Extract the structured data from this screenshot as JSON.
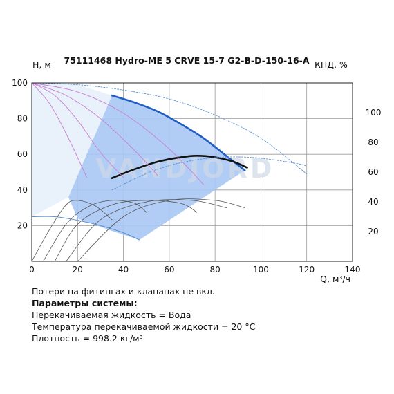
{
  "chart_data": {
    "type": "line",
    "title": "75111468 Hydro-ME 5 CRVE 15-7 G2-B-D-150-16-A",
    "ylabel": "H, м",
    "y2label": "КПД, %",
    "xlabel": "Q, м³/ч",
    "xlim": [
      0,
      140
    ],
    "ylim": [
      0,
      100
    ],
    "y2lim": [
      0,
      120
    ],
    "x_ticks": [
      0,
      20,
      40,
      60,
      80,
      100,
      120,
      140
    ],
    "y_ticks": [
      20,
      40,
      60,
      80,
      100
    ],
    "y2_ticks": [
      20,
      40,
      60,
      80,
      100
    ],
    "grid": true,
    "watermark": "VANDJORD",
    "colors": {
      "head_main": "#1f5fc4",
      "efficiency_main": "#111111",
      "region_fill": "#a9c8f4",
      "light_region": "#e9f1fb",
      "pink": "#c77fcf",
      "thin_blue": "#5a90d0",
      "thin_gray": "#555555"
    },
    "series": [
      {
        "role": "head-main",
        "axis": "left",
        "color": "#1f5fc4",
        "x": [
          35,
          45,
          55,
          65,
          75,
          85,
          93
        ],
        "y": [
          93,
          89,
          84,
          77,
          69,
          59,
          51
        ]
      },
      {
        "role": "efficiency-main",
        "axis": "right",
        "color": "#111111",
        "x": [
          35,
          45,
          55,
          65,
          72,
          80,
          88,
          94
        ],
        "y": [
          56,
          62,
          67,
          70,
          71,
          70,
          67,
          63
        ]
      },
      {
        "role": "head-max",
        "axis": "left",
        "color": "#5a90d0",
        "dash": true,
        "x": [
          0,
          20,
          40,
          60,
          80,
          100,
          120
        ],
        "y": [
          100,
          99,
          96,
          91,
          82,
          69,
          49
        ]
      },
      {
        "role": "efficiency-max",
        "axis": "right",
        "color": "#5a90d0",
        "dash": true,
        "x": [
          35,
          55,
          75,
          95,
          115,
          120
        ],
        "y": [
          48,
          62,
          69,
          70,
          66,
          64
        ]
      },
      {
        "role": "head-partial",
        "axis": "left",
        "color": "#c77fcf",
        "x": [
          0,
          20,
          40,
          60,
          75
        ],
        "y": [
          100,
          95,
          83,
          63,
          43
        ]
      },
      {
        "role": "head-partial",
        "axis": "left",
        "color": "#c77fcf",
        "x": [
          0,
          15,
          30,
          45,
          55
        ],
        "y": [
          100,
          93,
          80,
          62,
          48
        ]
      },
      {
        "role": "head-partial",
        "axis": "left",
        "color": "#c77fcf",
        "x": [
          0,
          10,
          20,
          30,
          40
        ],
        "y": [
          100,
          93,
          79,
          61,
          47
        ]
      },
      {
        "role": "head-partial",
        "axis": "left",
        "color": "#c77fcf",
        "x": [
          0,
          8,
          16,
          24
        ],
        "y": [
          100,
          88,
          69,
          47
        ]
      },
      {
        "role": "head-min",
        "axis": "left",
        "color": "#5a90d0",
        "x": [
          0,
          10,
          20,
          30,
          40,
          47
        ],
        "y": [
          25,
          25,
          23,
          20,
          16,
          12
        ]
      },
      {
        "role": "efficiency-partial",
        "axis": "right",
        "color": "#555555",
        "x": [
          0,
          8,
          15,
          20,
          28,
          35
        ],
        "y": [
          0,
          22,
          38,
          41,
          37,
          28
        ]
      },
      {
        "role": "efficiency-partial",
        "axis": "right",
        "color": "#555555",
        "x": [
          5,
          15,
          25,
          35,
          45,
          50
        ],
        "y": [
          0,
          25,
          37,
          41,
          39,
          33
        ]
      },
      {
        "role": "efficiency-partial",
        "axis": "right",
        "color": "#555555",
        "x": [
          10,
          20,
          35,
          50,
          65,
          72
        ],
        "y": [
          0,
          25,
          38,
          41,
          39,
          33
        ]
      },
      {
        "role": "efficiency-partial",
        "axis": "right",
        "color": "#555555",
        "x": [
          15,
          30,
          50,
          70,
          85
        ],
        "y": [
          0,
          28,
          40,
          41,
          36
        ]
      },
      {
        "role": "efficiency-partial",
        "axis": "right",
        "color": "#555555",
        "x": [
          20,
          40,
          60,
          80,
          93
        ],
        "y": [
          0,
          30,
          41,
          41,
          36
        ]
      }
    ],
    "region": {
      "x": [
        35,
        45,
        55,
        65,
        75,
        85,
        93,
        47,
        35,
        20,
        16
      ],
      "y": [
        93,
        89,
        84,
        77,
        69,
        59,
        51,
        12,
        17,
        24,
        36
      ]
    }
  },
  "notes": {
    "line1": "Потери на фитингах и клапанах не вкл.",
    "line2": "Параметры системы:",
    "line3": "Перекачиваемая жидкость = Вода",
    "line4": "Температура перекачиваемой жидкости = 20 °C",
    "line5": "Плотность = 998.2 кг/м³"
  }
}
